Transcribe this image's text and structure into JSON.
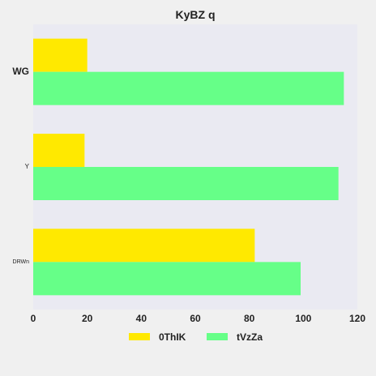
{
  "chart_data": {
    "type": "bar",
    "orientation": "horizontal",
    "title": "KyBZ q",
    "xlabel": "",
    "ylabel": "",
    "categories": [
      "WG",
      "Y",
      "DRWn"
    ],
    "series": [
      {
        "name": "0ThIK",
        "values": [
          20,
          19,
          82
        ],
        "color": "#ffe900"
      },
      {
        "name": "tVzZa",
        "values": [
          115,
          113,
          99
        ],
        "color": "#66ff88"
      }
    ],
    "xlim": [
      0,
      120
    ],
    "xticks": [
      "0",
      "20",
      "40",
      "60",
      "80",
      "100",
      "120"
    ],
    "xtick_values": [
      0,
      20,
      40,
      60,
      80,
      100,
      120
    ],
    "grid": false,
    "legend_position": "bottom"
  },
  "colors": {
    "plot_background": "#eaeaf2",
    "page_background": "#f0f0f0"
  }
}
